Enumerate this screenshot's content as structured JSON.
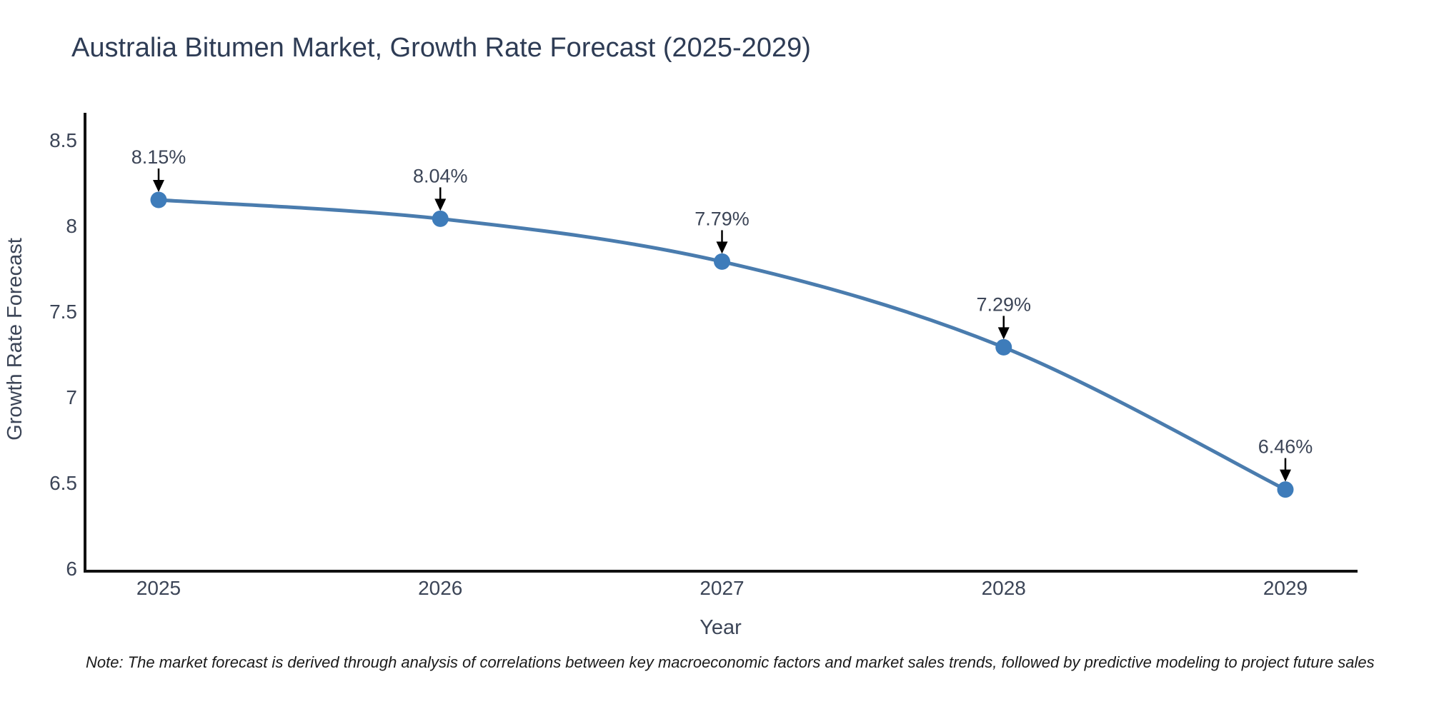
{
  "title": {
    "text": "Australia Bitumen Market, Growth Rate Forecast (2025-2029)",
    "color": "#2e3c55"
  },
  "note": {
    "text": "Note: The market forecast is derived through analysis of correlations between key macroeconomic factors and market sales trends, followed by predictive modeling to project future sales"
  },
  "chart_data": {
    "type": "line",
    "title": "Australia Bitumen Market, Growth Rate Forecast (2025-2029)",
    "xlabel": "Year",
    "ylabel": "Growth Rate Forecast",
    "x": [
      2025,
      2026,
      2027,
      2028,
      2029
    ],
    "categories": [
      "2025",
      "2026",
      "2027",
      "2028",
      "2029"
    ],
    "values": [
      8.15,
      8.04,
      7.79,
      7.29,
      6.46
    ],
    "point_labels": [
      "8.15%",
      "8.04%",
      "7.79%",
      "7.29%",
      "6.46%"
    ],
    "y_ticks": [
      6,
      6.5,
      7,
      7.5,
      8,
      8.5
    ],
    "y_tick_labels": [
      "6",
      "6.5",
      "7",
      "7.5",
      "8",
      "8.5"
    ],
    "ylim": [
      5.98,
      8.66
    ],
    "xlim": [
      2024.74,
      2029.26
    ],
    "grid": false,
    "legend": "none",
    "line_shape": "spline",
    "line_color": "#4a7cae",
    "marker_color": "#3e7cba",
    "axis_color": "#111111",
    "axis_text_color": "#3c4557",
    "annotation_text_color": "#3c4557",
    "annotation_arrow_color": "#000000"
  }
}
